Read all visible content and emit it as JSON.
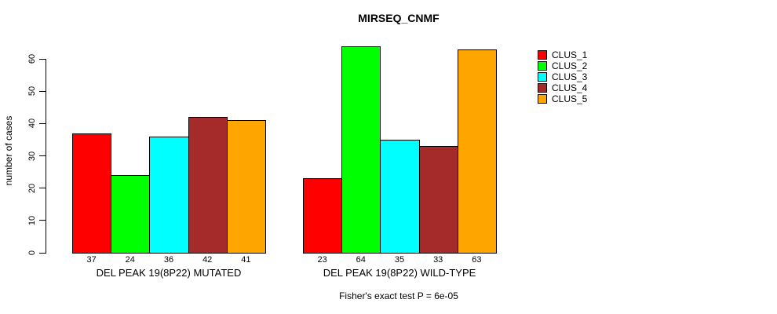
{
  "chart_data": {
    "type": "bar",
    "title": "MIRSEQ_CNMF",
    "ylabel": "number of cases",
    "xlabel": "",
    "ylim": [
      0,
      64
    ],
    "yticks": [
      0,
      10,
      20,
      30,
      40,
      50,
      60
    ],
    "grid": false,
    "legend_position": "top-right",
    "bar_value_labels": true,
    "categories": [
      "DEL PEAK 19(8P22) MUTATED",
      "DEL PEAK 19(8P22) WILD-TYPE"
    ],
    "series": [
      {
        "name": "CLUS_1",
        "color": "#ff0000",
        "values": [
          37,
          23
        ]
      },
      {
        "name": "CLUS_2",
        "color": "#00ff00",
        "values": [
          24,
          64
        ]
      },
      {
        "name": "CLUS_3",
        "color": "#00ffff",
        "values": [
          36,
          35
        ]
      },
      {
        "name": "CLUS_4",
        "color": "#a52a2a",
        "values": [
          42,
          33
        ]
      },
      {
        "name": "CLUS_5",
        "color": "#ffa500",
        "values": [
          41,
          63
        ]
      }
    ],
    "annotation": "Fisher's exact test P = 6e-05"
  }
}
